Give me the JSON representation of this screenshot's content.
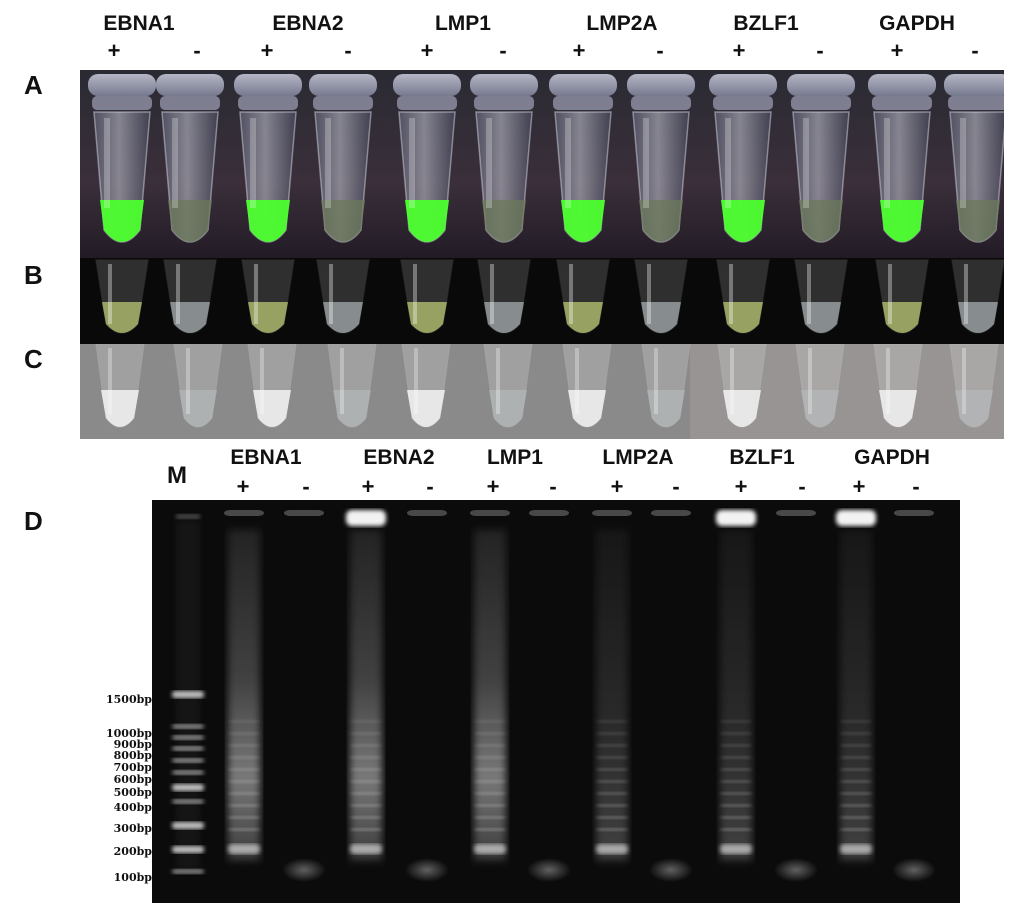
{
  "figure": {
    "top_gene_labels": [
      "EBNA1",
      "EBNA2",
      "LMP1",
      "LMP2A",
      "BZLF1",
      "GAPDH"
    ],
    "gel_gene_labels": [
      "EBNA1",
      "EBNA2",
      "LMP1",
      "LMP2A",
      "BZLF1",
      "GAPDH"
    ],
    "plus_sign": "+",
    "minus_sign": "-",
    "panels": {
      "a": "A",
      "b": "B",
      "c": "C",
      "d": "D"
    },
    "marker_lane_label": "M",
    "marker_sizes": [
      "1500bp",
      "1000bp",
      "900bp",
      "800bp",
      "700bp",
      "600bp",
      "500bp",
      "400bp",
      "300bp",
      "200bp",
      "100bp"
    ],
    "colors": {
      "fluorescent_green": "#4cff2e",
      "tube_background": "#1c1d22",
      "gel_background": "#0b0b0b"
    }
  }
}
